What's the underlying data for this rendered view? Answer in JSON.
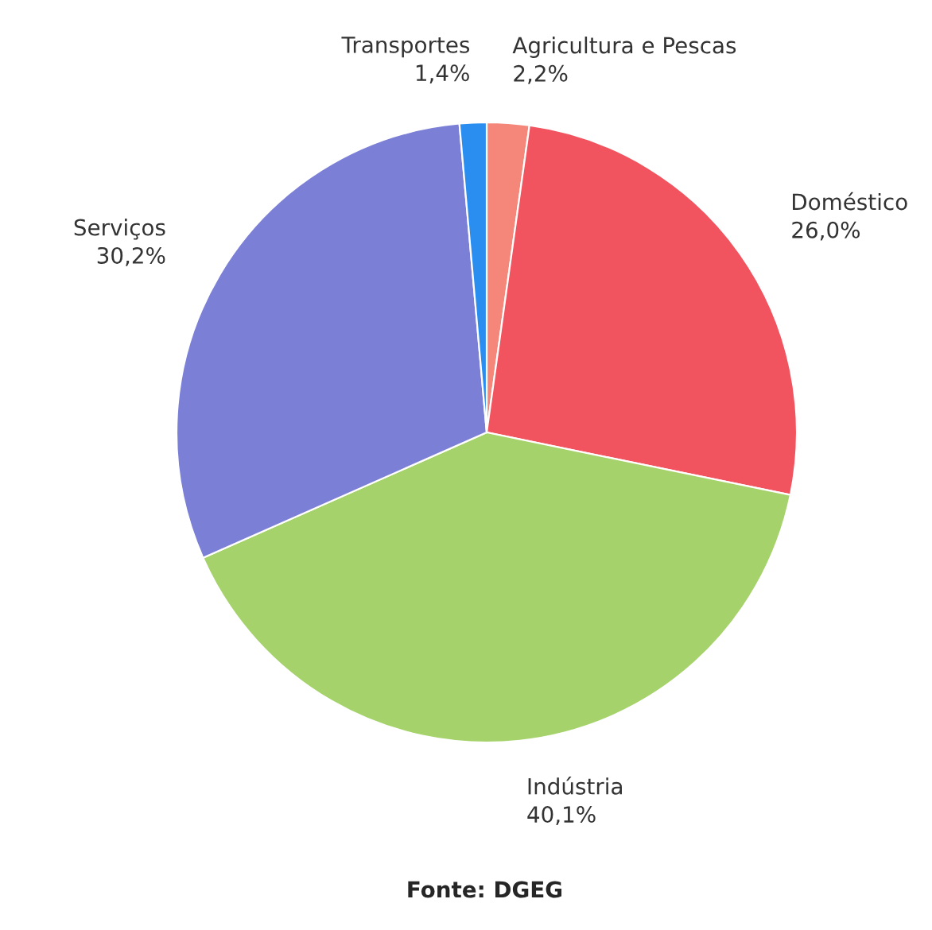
{
  "chart_data": {
    "type": "pie",
    "categories": [
      "Agricultura e Pescas",
      "Doméstico",
      "Indústria",
      "Serviços",
      "Transportes"
    ],
    "values": [
      2.2,
      26.0,
      40.1,
      30.2,
      1.4
    ],
    "value_labels": [
      "2,2%",
      "26,0%",
      "40,1%",
      "30,2%",
      "1,4%"
    ],
    "colors": [
      "#f4877a",
      "#f2545f",
      "#a5d26a",
      "#7b7fd6",
      "#2a8ef0"
    ],
    "annotations": [
      "Fonte: DGEG"
    ]
  }
}
